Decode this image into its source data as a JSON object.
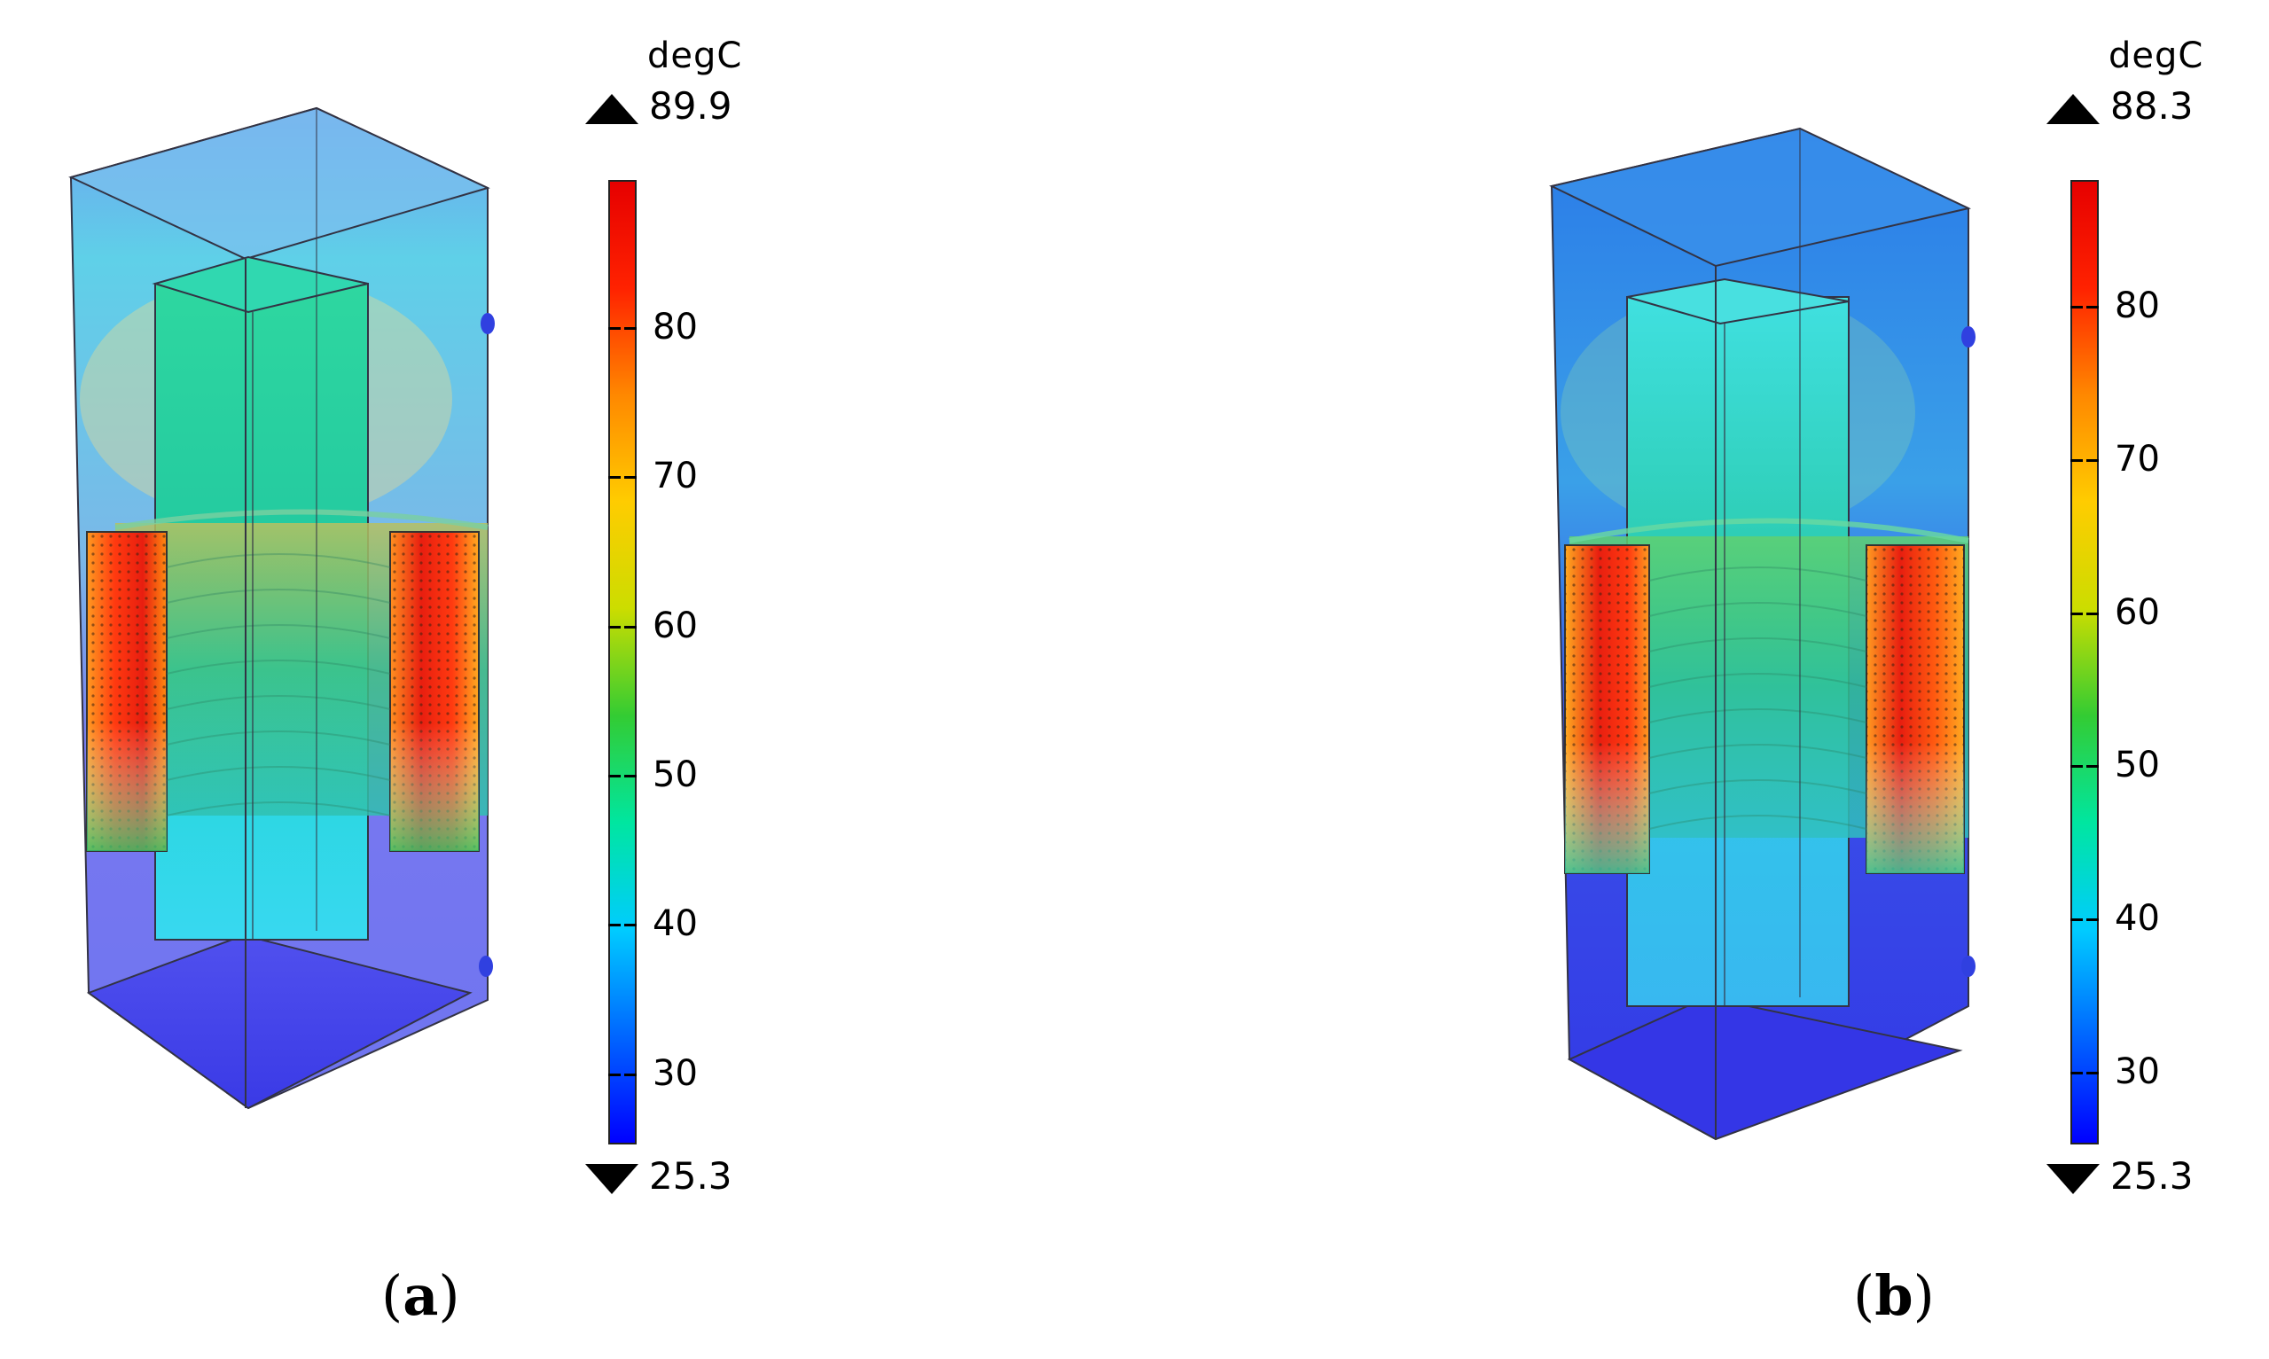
{
  "panels": [
    {
      "id": "a",
      "label_letter": "a",
      "colorbar": {
        "unit": "degC",
        "max": "89.9",
        "min": "25.3",
        "ticks": [
          "80",
          "70",
          "60",
          "50",
          "40",
          "30"
        ],
        "max_value": 89.9,
        "min_value": 25.3,
        "tick_values": [
          80,
          70,
          60,
          50,
          40,
          30
        ]
      }
    },
    {
      "id": "b",
      "label_letter": "b",
      "colorbar": {
        "unit": "degC",
        "max": "88.3",
        "min": "25.3",
        "ticks": [
          "80",
          "70",
          "60",
          "50",
          "40",
          "30"
        ],
        "max_value": 88.3,
        "min_value": 25.3,
        "tick_values": [
          80,
          70,
          60,
          50,
          40,
          30
        ]
      }
    }
  ],
  "colormap": {
    "name": "rainbow",
    "stops": [
      "#0000ff",
      "#0066ff",
      "#00ccff",
      "#00e6a0",
      "#33cc33",
      "#ccdd00",
      "#ffcc00",
      "#ff8800",
      "#ff2200",
      "#e60000"
    ]
  }
}
